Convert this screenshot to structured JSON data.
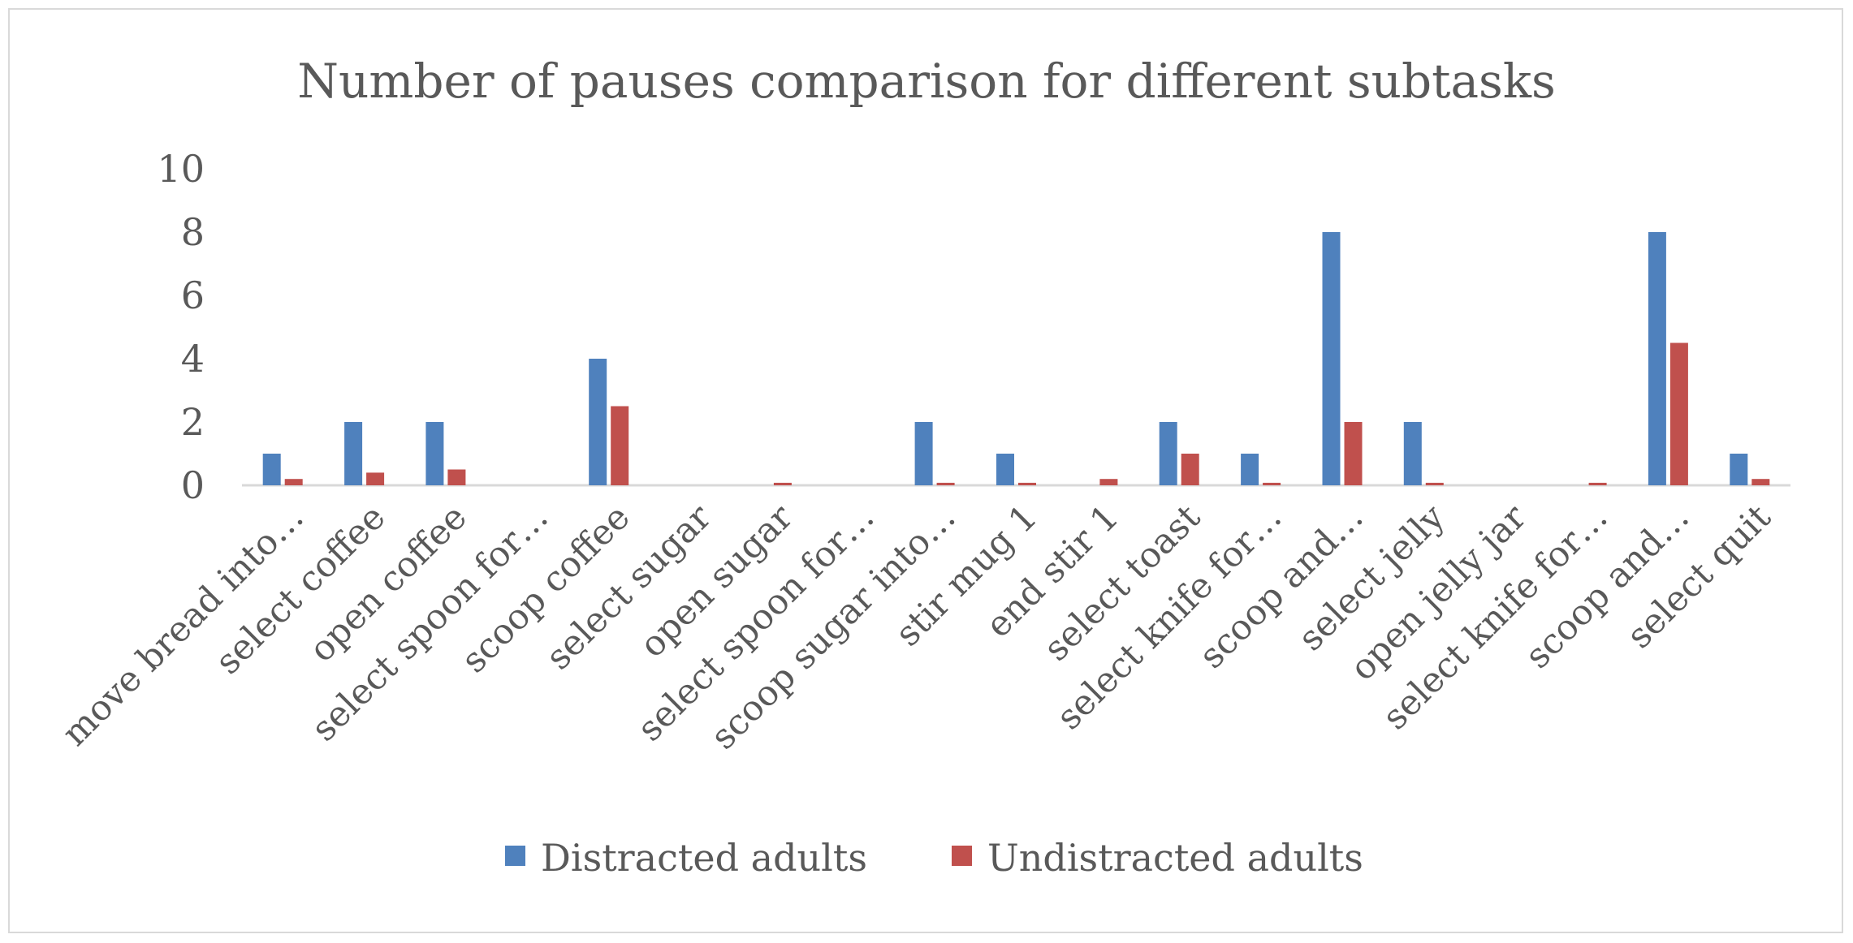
{
  "chart_data": {
    "type": "bar",
    "title": "Number of pauses comparison for different subtasks",
    "xlabel": "",
    "ylabel": "",
    "ylim": [
      0,
      10
    ],
    "yticks": [
      0,
      2,
      4,
      6,
      8,
      10
    ],
    "grid": false,
    "legend_position": "bottom",
    "categories": [
      "move bread into…",
      "select coffee",
      "open coffee",
      "select spoon for…",
      "scoop coffee",
      "select sugar",
      "open sugar",
      "select spoon for…",
      "scoop sugar into…",
      "stir mug 1",
      "end stir 1",
      "select toast",
      "select knife for…",
      "scoop and…",
      "select jelly",
      "open jelly jar",
      "select knife for…",
      "scoop and…",
      "select quit"
    ],
    "series": [
      {
        "name": "Distracted adults",
        "color": "#4f81bd",
        "values": [
          1,
          2,
          2,
          0,
          4,
          0,
          0,
          0,
          2,
          1,
          0,
          2,
          1,
          8,
          2,
          0,
          0,
          8,
          1
        ]
      },
      {
        "name": "Undistracted adults",
        "color": "#c0504d",
        "values": [
          0.2,
          0.4,
          0.5,
          0,
          2.5,
          0,
          0.08,
          0,
          0.08,
          0.08,
          0.2,
          1,
          0.08,
          2,
          0.08,
          0,
          0.08,
          4.5,
          0.2
        ]
      }
    ]
  }
}
